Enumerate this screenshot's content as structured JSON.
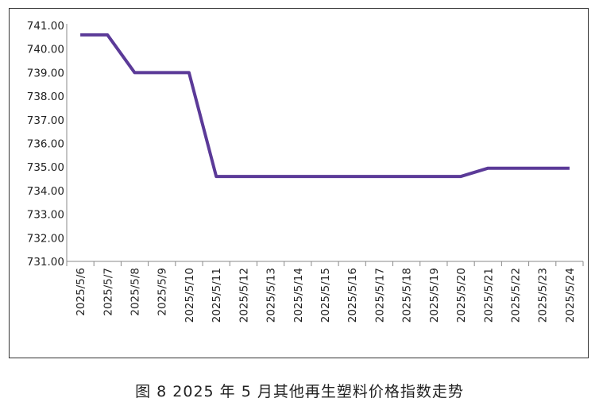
{
  "caption": "图 8  2025 年 5 月其他再生塑料价格指数走势",
  "chart_data": {
    "type": "line",
    "title": "",
    "xlabel": "",
    "ylabel": "",
    "ylim": [
      731.0,
      741.0
    ],
    "yticks": [
      "741.00",
      "740.00",
      "739.00",
      "738.00",
      "737.00",
      "736.00",
      "735.00",
      "734.00",
      "733.00",
      "732.00",
      "731.00"
    ],
    "categories": [
      "2025/5/6",
      "2025/5/7",
      "2025/5/8",
      "2025/5/9",
      "2025/5/10",
      "2025/5/11",
      "2025/5/12",
      "2025/5/13",
      "2025/5/14",
      "2025/5/15",
      "2025/5/16",
      "2025/5/17",
      "2025/5/18",
      "2025/5/19",
      "2025/5/20",
      "2025/5/21",
      "2025/5/22",
      "2025/5/23",
      "2025/5/24"
    ],
    "series": [
      {
        "values": [
          740.6,
          740.6,
          739.0,
          739.0,
          739.0,
          734.6,
          734.6,
          734.6,
          734.6,
          734.6,
          734.6,
          734.6,
          734.6,
          734.6,
          734.6,
          734.95,
          734.95,
          734.95,
          734.95
        ]
      }
    ],
    "grid": false,
    "legend": "none",
    "line_color": "#5b3a98"
  }
}
